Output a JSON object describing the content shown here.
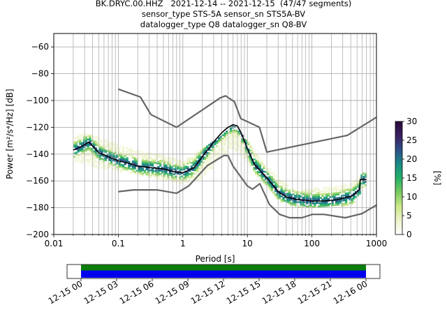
{
  "chart_data": {
    "type": "heatmap",
    "title_lines": [
      "BK.DRYC.00.HHZ   2021-12-14 -- 2021-12-15  (47/47 segments)",
      "sensor_type STS-5A sensor_sn STS5A-BV",
      "datalogger_type Q8 datalogger_sn Q8-BV"
    ],
    "xlabel": "Period [s]",
    "ylabel": "Power [m²/s⁴/Hz] [dB]",
    "x_scale": "log",
    "xlim": [
      0.01,
      1000
    ],
    "ylim": [
      -200,
      -50
    ],
    "x_ticks": [
      {
        "v": 0.01,
        "label": "0.01"
      },
      {
        "v": 0.1,
        "label": "0.1"
      },
      {
        "v": 1,
        "label": "1"
      },
      {
        "v": 10,
        "label": "10"
      },
      {
        "v": 100,
        "label": "100"
      },
      {
        "v": 1000,
        "label": "1000"
      }
    ],
    "y_ticks": [
      -200,
      -180,
      -160,
      -140,
      -120,
      -100,
      -80,
      -60
    ],
    "grid": true,
    "colorbar": {
      "label": "[%]",
      "range": [
        0,
        30
      ],
      "ticks": [
        0,
        5,
        10,
        15,
        20,
        25,
        30
      ],
      "colors": [
        "#ffffff",
        "#eef3c8",
        "#c9e88a",
        "#79c95f",
        "#23b06a",
        "#1a8a86",
        "#2d4f88",
        "#3b1f60",
        "#2a0a3a"
      ]
    },
    "noise_model_high": {
      "name": "NHNM",
      "period": [
        0.1,
        0.22,
        0.32,
        0.8,
        3.8,
        4.6,
        6.3,
        7.9,
        15.4,
        20,
        354.8,
        1000
      ],
      "power": [
        -91.5,
        -97.4,
        -110.5,
        -120,
        -98,
        -96.5,
        -101,
        -113.5,
        -120,
        -138.5,
        -126,
        -112.5
      ]
    },
    "noise_model_low": {
      "name": "NLNM",
      "period": [
        0.1,
        0.17,
        0.4,
        0.8,
        1.24,
        2.4,
        4.3,
        5,
        6,
        10,
        12,
        15.6,
        21.9,
        31.6,
        45,
        70,
        101,
        154,
        328,
        600,
        1000
      ],
      "power": [
        -168,
        -166.7,
        -166.7,
        -169.2,
        -163.7,
        -148.6,
        -141.1,
        -141.1,
        -149,
        -163.8,
        -166.2,
        -162.1,
        -177.5,
        -185,
        -187.5,
        -187.5,
        -185,
        -185,
        -187.5,
        -184.4,
        -178
      ]
    },
    "mode_curve": {
      "period": [
        0.02,
        0.025,
        0.03,
        0.035,
        0.04,
        0.05,
        0.07,
        0.1,
        0.15,
        0.2,
        0.3,
        0.5,
        0.7,
        1.0,
        1.5,
        2.0,
        3.0,
        4.0,
        5.0,
        6.0,
        7.0,
        8.0,
        10,
        13,
        17,
        22,
        30,
        40,
        60,
        80,
        100,
        150,
        200,
        250,
        300,
        350,
        400,
        500,
        550,
        560,
        700
      ],
      "power": [
        -137,
        -135,
        -133,
        -131,
        -134,
        -139,
        -142,
        -145,
        -147,
        -149,
        -150,
        -151,
        -153,
        -154,
        -150,
        -142,
        -131,
        -124,
        -120,
        -118,
        -119,
        -124,
        -136,
        -148,
        -154,
        -160,
        -168,
        -172,
        -174,
        -174.5,
        -175,
        -175,
        -174.5,
        -174,
        -173,
        -172,
        -172,
        -168,
        -166,
        -159,
        -159
      ]
    },
    "histogram_spread": {
      "period": [
        0.02,
        0.03,
        0.05,
        0.1,
        0.2,
        0.5,
        1.0,
        2.0,
        4.0,
        6.0,
        10,
        15,
        30,
        60,
        100,
        200,
        400,
        700
      ],
      "upper": [
        -128,
        -124,
        -127,
        -133,
        -137,
        -141,
        -145,
        -136,
        -126,
        -118,
        -130,
        -142,
        -158,
        -168,
        -165,
        -164,
        -162,
        -152
      ],
      "lower": [
        -145,
        -147,
        -150,
        -152,
        -155,
        -159,
        -162,
        -158,
        -141,
        -135,
        -145,
        -158,
        -174,
        -179,
        -179,
        -178,
        -178,
        -163
      ]
    },
    "timeline": {
      "tick_labels": [
        "12-15 00",
        "12-15 03",
        "12-15 06",
        "12-15 09",
        "12-15 12",
        "12-15 15",
        "12-15 18",
        "12-15 21",
        "12-16 00"
      ],
      "coverage_start_fraction": 0.0,
      "coverage_end_fraction": 1.0,
      "colors": {
        "data": "#0a7d0a",
        "segments": "#0000ee"
      }
    }
  }
}
